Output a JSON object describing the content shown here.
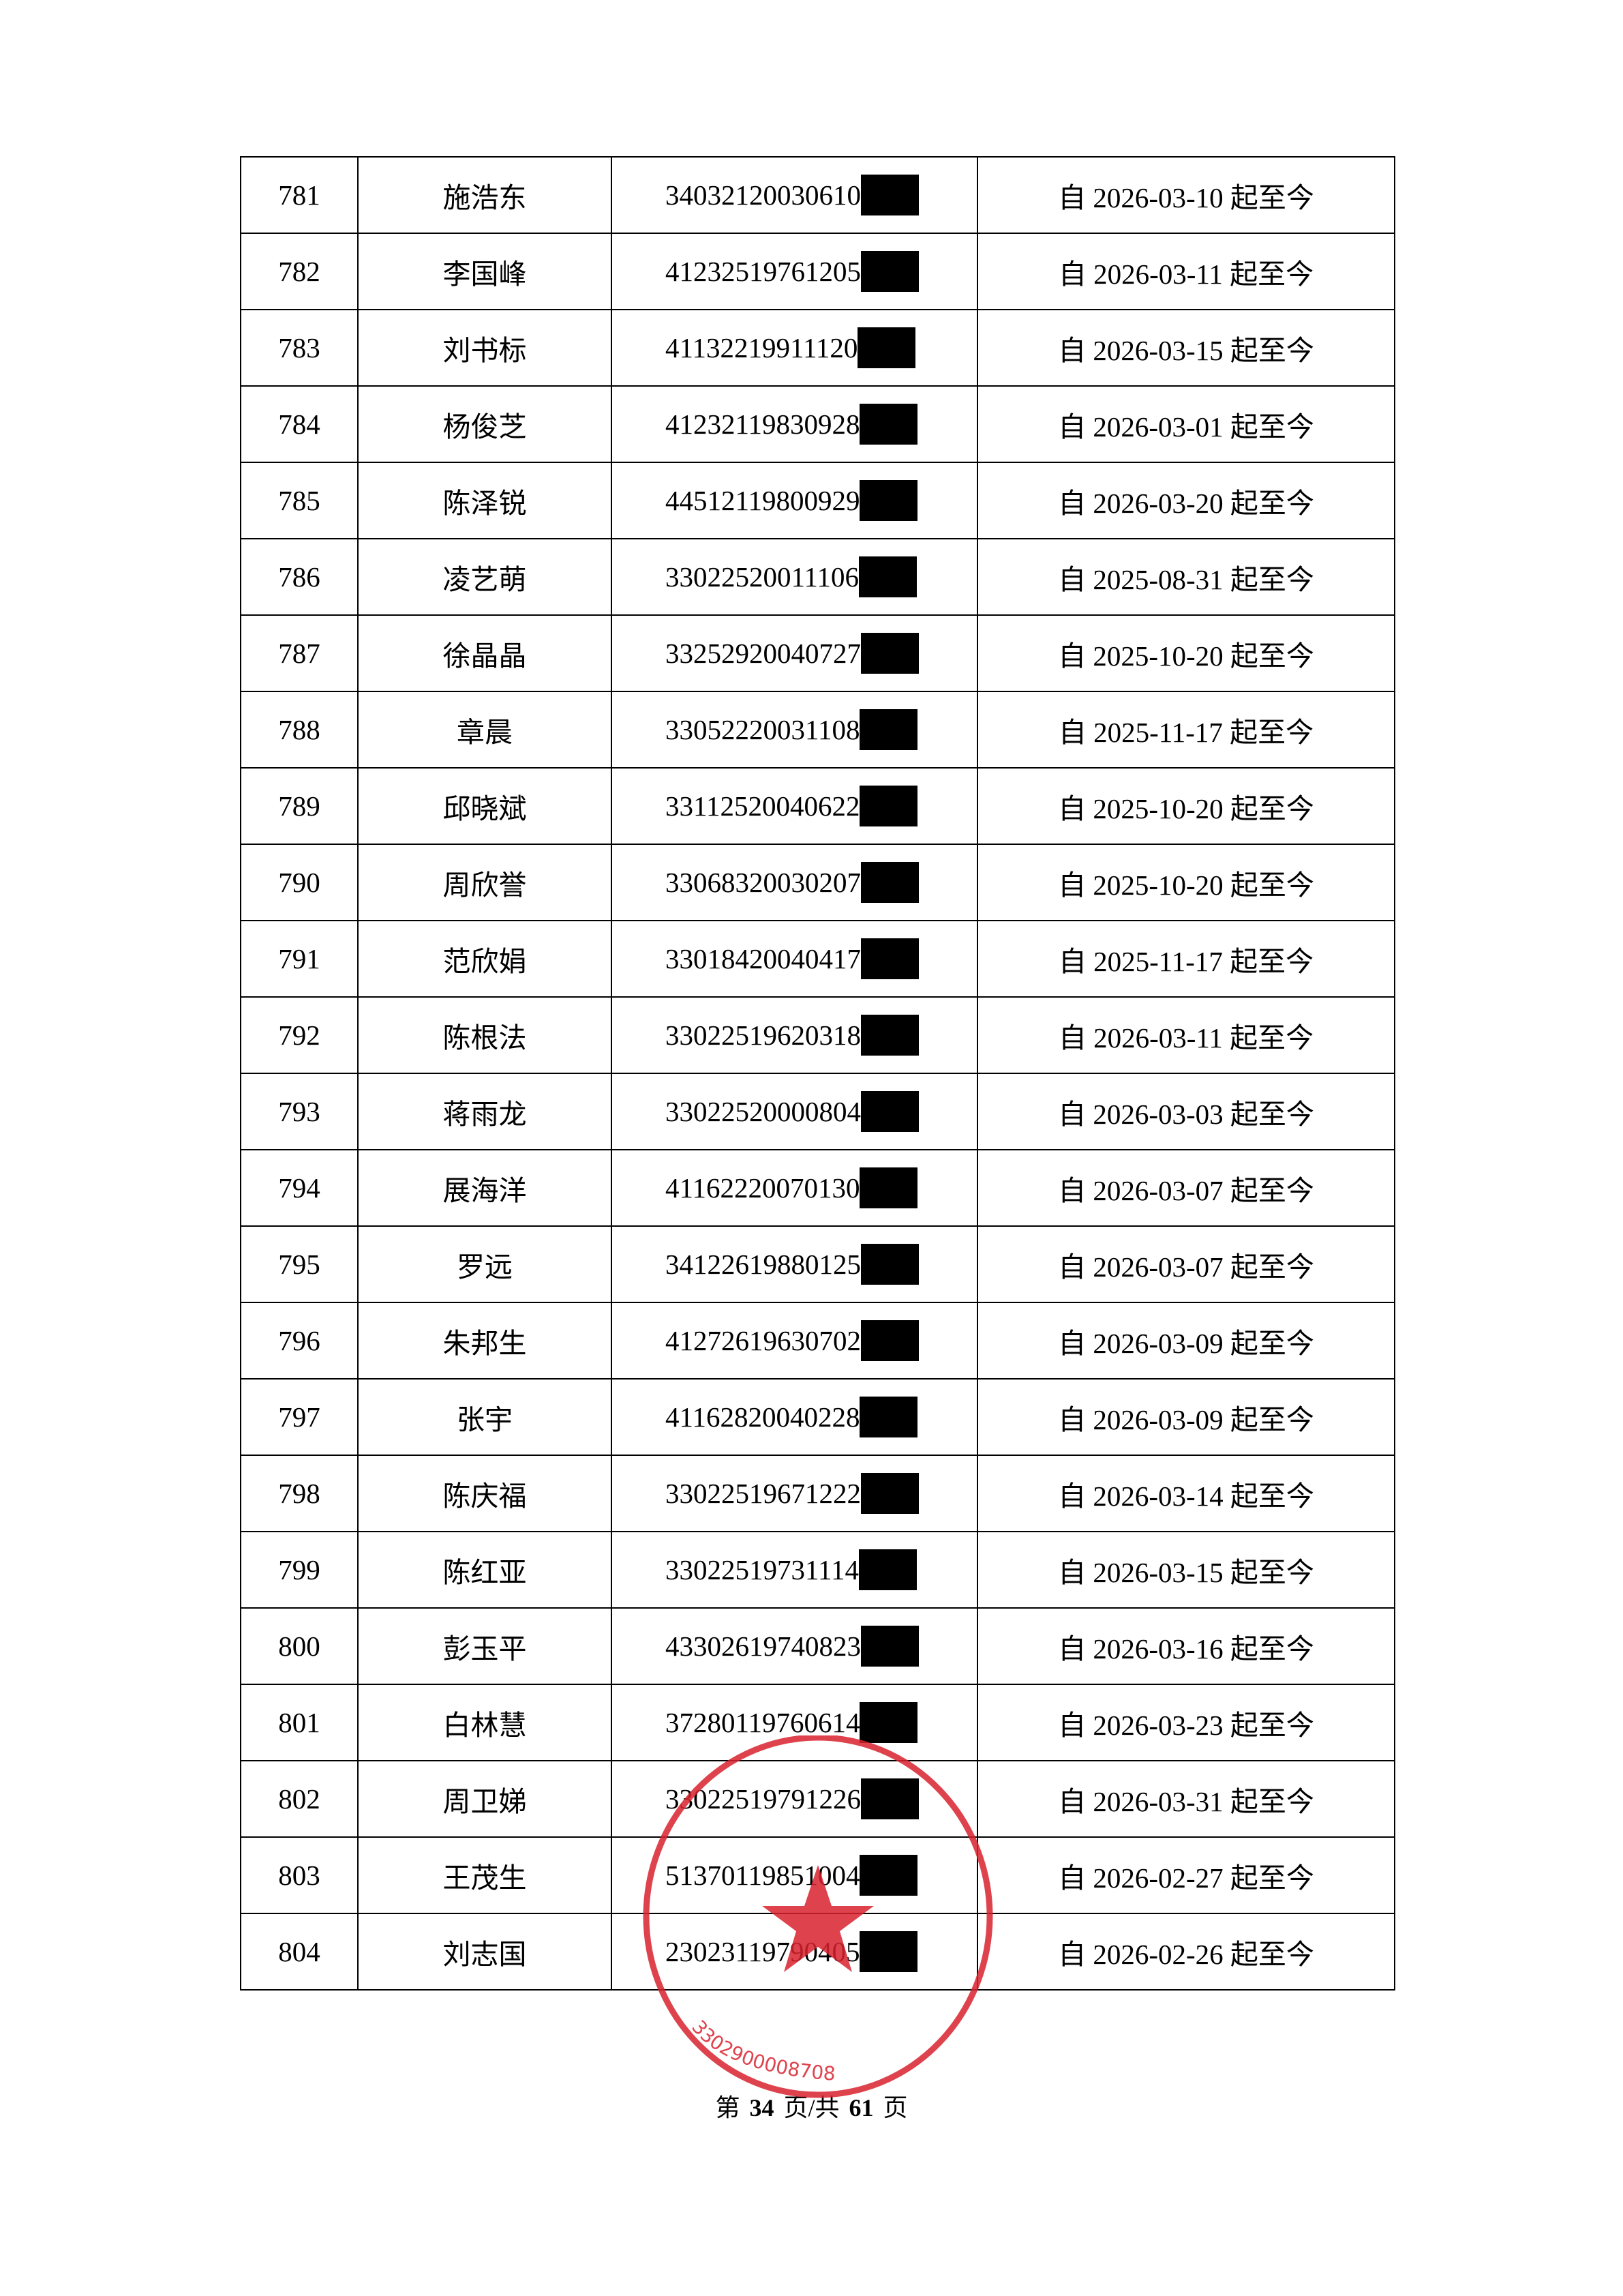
{
  "rows": [
    {
      "no": "781",
      "name": "施浩东",
      "id": "34032120030610",
      "date": "自 2026-03-10 起至今"
    },
    {
      "no": "782",
      "name": "李国峰",
      "id": "41232519761205",
      "date": "自 2026-03-11 起至今"
    },
    {
      "no": "783",
      "name": "刘书标",
      "id": "41132219911120",
      "date": "自 2026-03-15 起至今"
    },
    {
      "no": "784",
      "name": "杨俊芝",
      "id": "41232119830928",
      "date": "自 2026-03-01 起至今"
    },
    {
      "no": "785",
      "name": "陈泽锐",
      "id": "44512119800929",
      "date": "自 2026-03-20 起至今"
    },
    {
      "no": "786",
      "name": "凌艺萌",
      "id": "33022520011106",
      "date": "自 2025-08-31 起至今"
    },
    {
      "no": "787",
      "name": "徐晶晶",
      "id": "33252920040727",
      "date": "自 2025-10-20 起至今"
    },
    {
      "no": "788",
      "name": "章晨",
      "id": "33052220031108",
      "date": "自 2025-11-17 起至今"
    },
    {
      "no": "789",
      "name": "邱晓斌",
      "id": "33112520040622",
      "date": "自 2025-10-20 起至今"
    },
    {
      "no": "790",
      "name": "周欣誉",
      "id": "33068320030207",
      "date": "自 2025-10-20 起至今"
    },
    {
      "no": "791",
      "name": "范欣娟",
      "id": "33018420040417",
      "date": "自 2025-11-17 起至今"
    },
    {
      "no": "792",
      "name": "陈根法",
      "id": "33022519620318",
      "date": "自 2026-03-11 起至今"
    },
    {
      "no": "793",
      "name": "蒋雨龙",
      "id": "33022520000804",
      "date": "自 2026-03-03 起至今"
    },
    {
      "no": "794",
      "name": "展海洋",
      "id": "41162220070130",
      "date": "自 2026-03-07 起至今"
    },
    {
      "no": "795",
      "name": "罗远",
      "id": "34122619880125",
      "date": "自 2026-03-07 起至今"
    },
    {
      "no": "796",
      "name": "朱邦生",
      "id": "41272619630702",
      "date": "自 2026-03-09 起至今"
    },
    {
      "no": "797",
      "name": "张宇",
      "id": "41162820040228",
      "date": "自 2026-03-09 起至今"
    },
    {
      "no": "798",
      "name": "陈庆福",
      "id": "33022519671222",
      "date": "自 2026-03-14 起至今"
    },
    {
      "no": "799",
      "name": "陈红亚",
      "id": "33022519731114",
      "date": "自 2026-03-15 起至今"
    },
    {
      "no": "800",
      "name": "彭玉平",
      "id": "43302619740823",
      "date": "自 2026-03-16 起至今"
    },
    {
      "no": "801",
      "name": "白林慧",
      "id": "37280119760614",
      "date": "自 2026-03-23 起至今"
    },
    {
      "no": "802",
      "name": "周卫娣",
      "id": "33022519791226",
      "date": "自 2026-03-31 起至今"
    },
    {
      "no": "803",
      "name": "王茂生",
      "id": "51370119851004",
      "date": "自 2026-02-27 起至今"
    },
    {
      "no": "804",
      "name": "刘志国",
      "id": "23023119790405",
      "date": "自 2026-02-26 起至今"
    }
  ],
  "footer": {
    "prefix": "第",
    "page": "34",
    "middle": "页/共",
    "total": "61",
    "suffix": "页"
  },
  "seal": {
    "color": "#d9232e",
    "code": "3302900008708"
  }
}
